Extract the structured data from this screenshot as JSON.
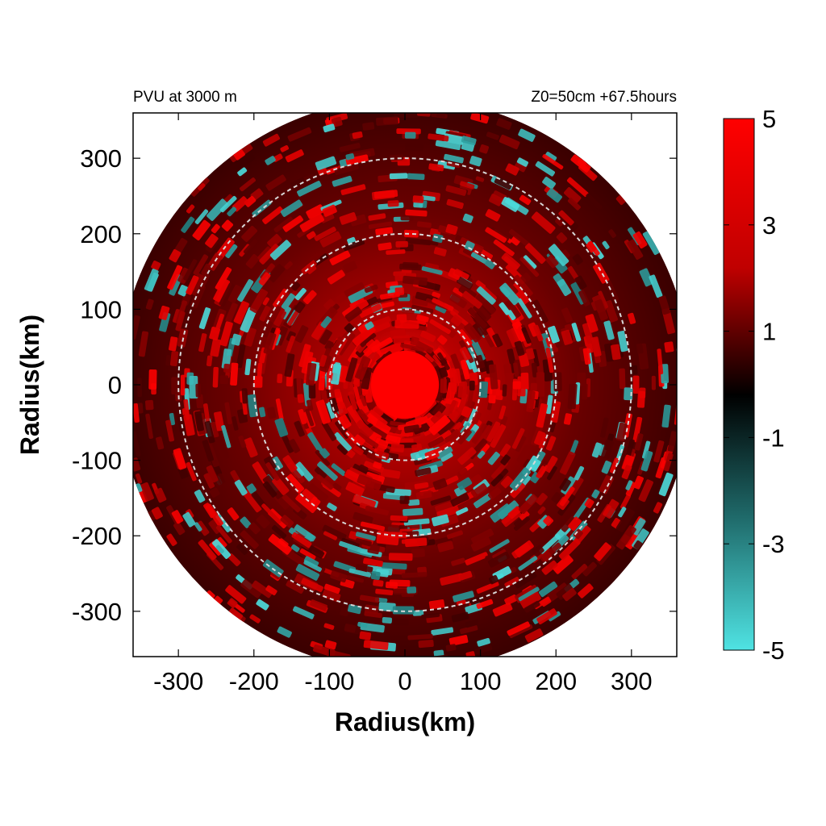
{
  "chart_data": {
    "type": "heatmap",
    "title_left": "PVU at  3000 m",
    "title_right": "Z0=50cm  +67.5hours",
    "xlabel": "Radius(km)",
    "ylabel": "Radius(km)",
    "xlim": [
      -360,
      360
    ],
    "ylim": [
      -360,
      360
    ],
    "x_ticks": [
      -300,
      -200,
      -100,
      0,
      100,
      200,
      300
    ],
    "y_ticks": [
      300,
      200,
      100,
      0,
      -100,
      -200,
      -300
    ],
    "domain_radius": 380,
    "reference_circles": [
      100,
      200,
      300
    ],
    "eye_radius": 45,
    "colorbar": {
      "min": -5,
      "max": 5,
      "ticks": [
        5,
        3,
        1,
        -1,
        -3,
        -5
      ],
      "colors": {
        "high": "#ff0000",
        "mid": "#000000",
        "low": "#4fe3e3"
      }
    }
  }
}
